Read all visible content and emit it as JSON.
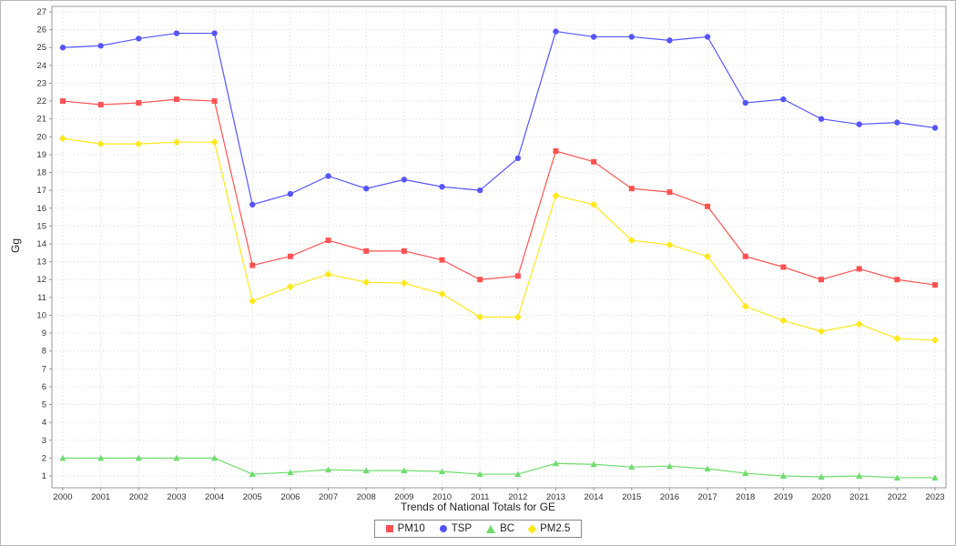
{
  "chart_data": {
    "type": "line",
    "title": "Trends of National Totals for GE",
    "xlabel": "",
    "ylabel": "Gg",
    "ylim": [
      1,
      27
    ],
    "ytick_step": 1,
    "grid": true,
    "legend_position": "bottom",
    "x": [
      2000,
      2001,
      2002,
      2003,
      2004,
      2005,
      2006,
      2007,
      2008,
      2009,
      2010,
      2011,
      2012,
      2013,
      2014,
      2015,
      2016,
      2017,
      2018,
      2019,
      2020,
      2021,
      2022,
      2023
    ],
    "series": [
      {
        "name": "PM10",
        "color": "#ff5252",
        "marker": "square",
        "values": [
          22.0,
          21.8,
          21.9,
          22.1,
          22.0,
          12.8,
          13.3,
          14.2,
          13.6,
          13.6,
          13.1,
          12.0,
          12.2,
          19.2,
          18.6,
          17.1,
          16.9,
          16.1,
          13.3,
          12.7,
          12.0,
          12.6,
          12.0,
          11.7
        ]
      },
      {
        "name": "TSP",
        "color": "#5555ff",
        "marker": "circle",
        "values": [
          25.0,
          25.1,
          25.5,
          25.8,
          25.8,
          16.2,
          16.8,
          17.8,
          17.1,
          17.6,
          17.2,
          17.0,
          18.8,
          25.9,
          25.6,
          25.6,
          25.4,
          25.6,
          21.9,
          22.1,
          21.0,
          20.7,
          20.8,
          20.5
        ]
      },
      {
        "name": "BC",
        "color": "#6fdc6f",
        "marker": "triangle",
        "values": [
          2.0,
          2.0,
          2.0,
          2.0,
          2.0,
          1.1,
          1.2,
          1.35,
          1.3,
          1.3,
          1.25,
          1.1,
          1.1,
          1.7,
          1.65,
          1.5,
          1.55,
          1.4,
          1.15,
          1.0,
          0.95,
          1.0,
          0.9,
          0.9
        ]
      },
      {
        "name": "PM2.5",
        "color": "#ffe81a",
        "marker": "diamond",
        "values": [
          19.9,
          19.6,
          19.6,
          19.7,
          19.7,
          10.8,
          11.6,
          12.3,
          11.85,
          11.8,
          11.2,
          9.9,
          9.9,
          16.7,
          16.2,
          14.2,
          13.95,
          13.3,
          10.5,
          9.7,
          9.1,
          9.5,
          8.7,
          8.6
        ]
      }
    ]
  }
}
